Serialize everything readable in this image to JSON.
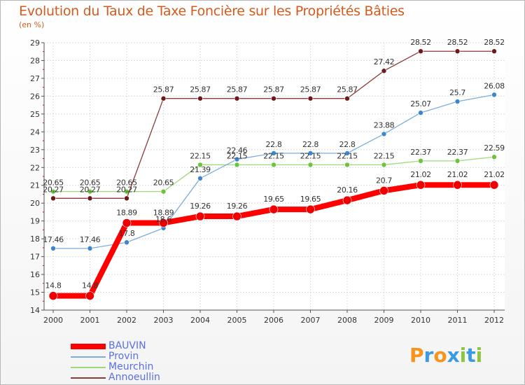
{
  "chart_data": {
    "type": "line",
    "title": "Evolution du Taux de Taxe Foncière sur les Propriétés Bâties",
    "subtitle": "(en %)",
    "x": [
      "2000",
      "2001",
      "2002",
      "2003",
      "2004",
      "2005",
      "2006",
      "2007",
      "2008",
      "2009",
      "2010",
      "2011",
      "2012"
    ],
    "ylim": [
      14,
      29
    ],
    "yticks": [
      "14",
      "15",
      "16",
      "17",
      "18",
      "19",
      "20",
      "21",
      "22",
      "23",
      "24",
      "25",
      "26",
      "27",
      "28",
      "29"
    ],
    "grid": true,
    "legend_position": "bottom-left",
    "series": [
      {
        "name": "BAUVIN",
        "color": "#ff0000",
        "values": [
          14.8,
          14.8,
          18.89,
          18.89,
          19.26,
          19.26,
          19.65,
          19.65,
          20.16,
          20.7,
          21.02,
          21.02,
          21.02
        ],
        "labels": [
          "14.8",
          "14.8",
          "18.89",
          "18.89",
          "19.26",
          "19.26",
          "19.65",
          "19.65",
          "20.16",
          "20.7",
          "21.02",
          "21.02",
          "21.02"
        ]
      },
      {
        "name": "Provin",
        "color": "#7eaedb",
        "values": [
          17.46,
          17.46,
          17.8,
          18.6,
          21.39,
          22.46,
          22.8,
          22.8,
          22.8,
          23.88,
          25.07,
          25.7,
          26.08
        ],
        "labels": [
          "17.46",
          "17.46",
          "17.8",
          "18.6",
          "21.39",
          "22.46",
          "22.8",
          "22.8",
          "22.8",
          "23.88",
          "25.07",
          "25.7",
          "26.08"
        ]
      },
      {
        "name": "Meurchin",
        "color": "#9fd97a",
        "values": [
          20.65,
          20.65,
          20.65,
          20.65,
          22.15,
          22.15,
          22.15,
          22.15,
          22.15,
          22.15,
          22.37,
          22.37,
          22.59
        ],
        "labels": [
          "20.65",
          "20.65",
          "20.65",
          "20.65",
          "22.15",
          "22.15",
          "22.15",
          "22.15",
          "22.15",
          "22.15",
          "22.37",
          "22.37",
          "22.59"
        ]
      },
      {
        "name": "Annoeullin",
        "color": "#8b3a3a",
        "values": [
          20.27,
          20.27,
          20.27,
          25.87,
          25.87,
          25.87,
          25.87,
          25.87,
          25.87,
          27.42,
          28.52,
          28.52,
          28.52
        ],
        "labels": [
          "20.27",
          "20.27",
          "20.27",
          "25.87",
          "25.87",
          "25.87",
          "25.87",
          "25.87",
          "25.87",
          "27.42",
          "28.52",
          "28.52",
          "28.52"
        ]
      }
    ]
  },
  "logo": {
    "text": "Proxiti",
    "letters": [
      "P",
      "r",
      "o",
      "x",
      "i",
      "t",
      "i"
    ],
    "colors": [
      "#f7941d",
      "#3b9be0",
      "#f7941d",
      "#3b9be0",
      "#8cc63f",
      "#3b9be0",
      "#8cc63f"
    ]
  }
}
